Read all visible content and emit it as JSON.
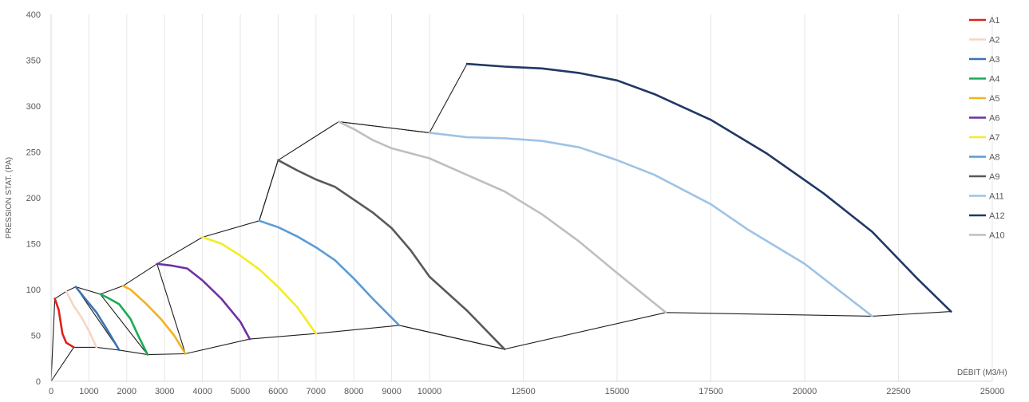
{
  "chart_data": {
    "type": "line",
    "title": "",
    "xlabel": "DÉBIT (M3/H)",
    "ylabel": "PRESSION STAT. (PA)",
    "ylim": [
      0,
      400
    ],
    "y_ticks": [
      0,
      50,
      100,
      150,
      200,
      250,
      300,
      350,
      400
    ],
    "x_scale": "piecewise linear (0–10000 compressed, 10000–25000 expanded)",
    "x_ticks_left": [
      0,
      1000,
      2000,
      3000,
      4000,
      5000,
      6000,
      7000,
      8000,
      9000,
      10000
    ],
    "x_ticks_right": [
      12500,
      15000,
      17500,
      20000,
      22500,
      25000
    ],
    "grid": "vertical gridlines",
    "legend_position": "right",
    "series": [
      {
        "name": "A1",
        "color": "#e0201b",
        "points": [
          [
            100,
            90
          ],
          [
            200,
            78
          ],
          [
            300,
            52
          ],
          [
            400,
            42
          ],
          [
            600,
            37
          ]
        ]
      },
      {
        "name": "A2",
        "color": "#f6d6c0",
        "points": [
          [
            400,
            98
          ],
          [
            600,
            82
          ],
          [
            800,
            70
          ],
          [
            1000,
            55
          ],
          [
            1200,
            37
          ]
        ]
      },
      {
        "name": "A3",
        "color": "#3d72b4",
        "points": [
          [
            650,
            103
          ],
          [
            900,
            90
          ],
          [
            1200,
            75
          ],
          [
            1500,
            55
          ],
          [
            1800,
            34
          ]
        ]
      },
      {
        "name": "A4",
        "color": "#1aab58",
        "points": [
          [
            1300,
            95
          ],
          [
            1500,
            91
          ],
          [
            1800,
            84
          ],
          [
            2100,
            68
          ],
          [
            2300,
            50
          ],
          [
            2550,
            29
          ]
        ]
      },
      {
        "name": "A5",
        "color": "#f2b31d",
        "points": [
          [
            1900,
            104
          ],
          [
            2100,
            100
          ],
          [
            2500,
            85
          ],
          [
            2900,
            68
          ],
          [
            3250,
            50
          ],
          [
            3550,
            30
          ]
        ]
      },
      {
        "name": "A6",
        "color": "#7030a0",
        "points": [
          [
            2800,
            128
          ],
          [
            3200,
            126
          ],
          [
            3600,
            123
          ],
          [
            4000,
            110
          ],
          [
            4500,
            90
          ],
          [
            5000,
            65
          ],
          [
            5250,
            46
          ]
        ]
      },
      {
        "name": "A7",
        "color": "#f4ec25",
        "points": [
          [
            4000,
            157
          ],
          [
            4500,
            150
          ],
          [
            5000,
            137
          ],
          [
            5500,
            122
          ],
          [
            6000,
            103
          ],
          [
            6500,
            81
          ],
          [
            7000,
            52
          ]
        ]
      },
      {
        "name": "A8",
        "color": "#5b9bd5",
        "points": [
          [
            5500,
            175
          ],
          [
            6000,
            168
          ],
          [
            6500,
            158
          ],
          [
            7000,
            146
          ],
          [
            7500,
            132
          ],
          [
            8000,
            112
          ],
          [
            8500,
            90
          ],
          [
            9200,
            61
          ]
        ]
      },
      {
        "name": "A9",
        "color": "#595959",
        "points": [
          [
            6000,
            241
          ],
          [
            6500,
            230
          ],
          [
            7000,
            220
          ],
          [
            7500,
            212
          ],
          [
            8000,
            198
          ],
          [
            8500,
            184
          ],
          [
            9000,
            167
          ],
          [
            9500,
            143
          ],
          [
            10000,
            114
          ],
          [
            11000,
            77
          ],
          [
            12000,
            35
          ]
        ]
      },
      {
        "name": "A11",
        "color": "#9dc3e6",
        "points": [
          [
            10000,
            271
          ],
          [
            11000,
            266
          ],
          [
            12000,
            265
          ],
          [
            13000,
            262
          ],
          [
            14000,
            255
          ],
          [
            15000,
            241
          ],
          [
            16000,
            225
          ],
          [
            17500,
            193
          ],
          [
            18500,
            165
          ],
          [
            20000,
            128
          ],
          [
            21800,
            71
          ]
        ]
      },
      {
        "name": "A12",
        "color": "#203864",
        "points": [
          [
            11000,
            346
          ],
          [
            12000,
            343
          ],
          [
            13000,
            341
          ],
          [
            14000,
            336
          ],
          [
            15000,
            328
          ],
          [
            16000,
            313
          ],
          [
            17500,
            285
          ],
          [
            19000,
            248
          ],
          [
            20500,
            205
          ],
          [
            21800,
            163
          ],
          [
            23000,
            112
          ],
          [
            23900,
            76
          ]
        ]
      },
      {
        "name": "A10",
        "color": "#bfbfbf",
        "points": [
          [
            7600,
            283
          ],
          [
            8000,
            275
          ],
          [
            8500,
            263
          ],
          [
            9000,
            254
          ],
          [
            10000,
            243
          ],
          [
            11000,
            225
          ],
          [
            12000,
            207
          ],
          [
            13000,
            182
          ],
          [
            14000,
            152
          ],
          [
            15000,
            118
          ],
          [
            16300,
            75
          ]
        ]
      }
    ],
    "boundary_lines": {
      "color": "#1f1f1f",
      "lines": [
        [
          [
            0,
            0
          ],
          [
            100,
            90
          ],
          [
            400,
            98
          ],
          [
            650,
            103
          ],
          [
            1300,
            95
          ],
          [
            1900,
            104
          ],
          [
            2800,
            128
          ],
          [
            4000,
            157
          ],
          [
            5500,
            175
          ],
          [
            6000,
            241
          ],
          [
            7600,
            283
          ],
          [
            10000,
            271
          ],
          [
            11000,
            346
          ]
        ],
        [
          [
            0,
            0
          ],
          [
            600,
            37
          ],
          [
            1200,
            37
          ],
          [
            1800,
            34
          ],
          [
            2550,
            29
          ],
          [
            3550,
            30
          ],
          [
            5250,
            46
          ],
          [
            7000,
            52
          ],
          [
            9200,
            61
          ],
          [
            12000,
            35
          ],
          [
            16300,
            75
          ],
          [
            21800,
            71
          ],
          [
            23900,
            76
          ]
        ],
        [
          [
            650,
            103
          ],
          [
            1800,
            34
          ]
        ],
        [
          [
            1300,
            95
          ],
          [
            2550,
            29
          ]
        ],
        [
          [
            2800,
            128
          ],
          [
            3550,
            30
          ]
        ],
        [
          [
            6000,
            241
          ],
          [
            5500,
            175
          ]
        ],
        [
          [
            9200,
            61
          ],
          [
            12000,
            35
          ]
        ],
        [
          [
            10000,
            271
          ],
          [
            7600,
            283
          ]
        ],
        [
          [
            11000,
            346
          ],
          [
            11000,
            346
          ]
        ]
      ]
    }
  }
}
